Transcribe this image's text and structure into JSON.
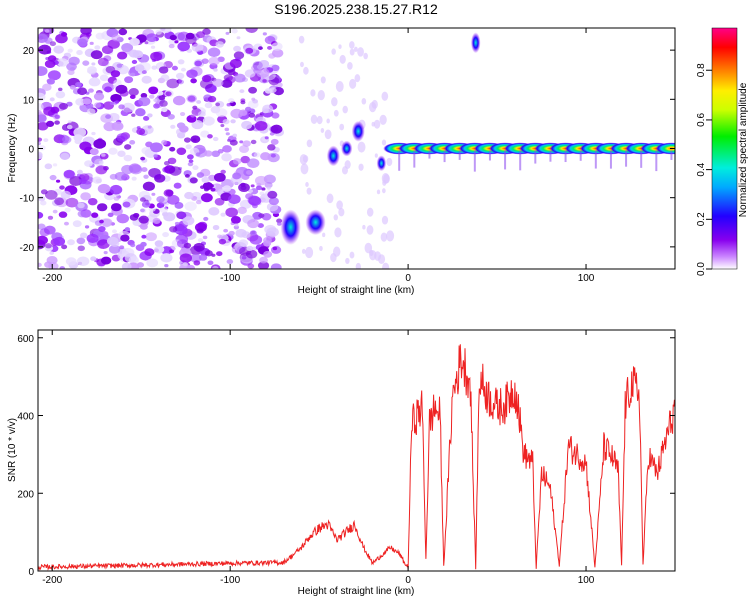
{
  "title": "S196.2025.238.15.27.R12",
  "colors": {
    "axis": "#000000",
    "snr_line": "#ee2222"
  },
  "chart_data": [
    {
      "type": "heatmap",
      "xlabel": "Height of straight line (km)",
      "ylabel": "Frequency (Hz)",
      "xlim": [
        -208,
        150
      ],
      "ylim": [
        -24.5,
        24.5
      ],
      "xticks": [
        -200,
        -100,
        0,
        100
      ],
      "yticks": [
        -20,
        -10,
        0,
        10,
        20
      ],
      "colorbar": {
        "label": "Normalized spectral amplitude",
        "range": [
          0,
          0.97
        ],
        "ticks": [
          0.0,
          0.2,
          0.4,
          0.6,
          0.8
        ],
        "colormap": "rainbow (white → violet → blue → cyan → green → yellow → orange → red → magenta)"
      },
      "features": {
        "noise_region_x": [
          -208,
          -72
        ],
        "dispersed_returns": [
          {
            "x": [
              -70,
              -62
            ],
            "freq": [
              -19,
              -13
            ],
            "peak": 0.35
          },
          {
            "x": [
              -56,
              -48
            ],
            "freq": [
              -17,
              -13
            ],
            "peak": 0.35
          },
          {
            "x": [
              -44,
              -40
            ],
            "freq": [
              -3,
              0
            ],
            "peak": 0.3
          },
          {
            "x": [
              -36,
              -33
            ],
            "freq": [
              -1,
              1
            ],
            "peak": 0.3
          },
          {
            "x": [
              -30,
              -26
            ],
            "freq": [
              2,
              5
            ],
            "peak": 0.2
          },
          {
            "x": [
              -16,
              -14
            ],
            "freq": [
              -4,
              -2
            ],
            "peak": 0.35
          },
          {
            "x": [
              37,
              39
            ],
            "freq": [
              20,
              23
            ],
            "peak": 0.3
          }
        ],
        "zero_doppler_track": {
          "x": [
            -8,
            150
          ],
          "freq": 0,
          "peak": 0.85
        }
      }
    },
    {
      "type": "line",
      "xlabel": "Height of straight line (km)",
      "ylabel": "SNR (10 * v/v)",
      "xlim": [
        -208,
        150
      ],
      "ylim": [
        0,
        620
      ],
      "xticks": [
        -200,
        -100,
        0,
        100
      ],
      "yticks": [
        0,
        200,
        400,
        600
      ],
      "series": [
        {
          "x": [
            -208,
            -150,
            -100,
            -70,
            -65,
            -60,
            -55,
            -50,
            -45,
            -40,
            -35,
            -30,
            -25,
            -20,
            -15,
            -10,
            -5,
            -2,
            0,
            2,
            5,
            8,
            10,
            12,
            15,
            18,
            20,
            25,
            30,
            35,
            38,
            40,
            45,
            50,
            55,
            58,
            60,
            62,
            65,
            70,
            72,
            75,
            78,
            80,
            85,
            90,
            95,
            100,
            105,
            110,
            115,
            118,
            120,
            122,
            125,
            130,
            132,
            135,
            140,
            145,
            150
          ],
          "y": [
            10,
            15,
            20,
            22,
            40,
            60,
            90,
            110,
            120,
            80,
            100,
            120,
            60,
            20,
            40,
            60,
            45,
            20,
            10,
            380,
            400,
            420,
            30,
            380,
            420,
            400,
            10,
            450,
            550,
            480,
            10,
            500,
            450,
            420,
            430,
            460,
            470,
            420,
            300,
            280,
            10,
            250,
            230,
            210,
            15,
            320,
            300,
            280,
            10,
            320,
            290,
            260,
            15,
            420,
            480,
            460,
            15,
            300,
            250,
            340,
            420
          ]
        }
      ]
    }
  ]
}
